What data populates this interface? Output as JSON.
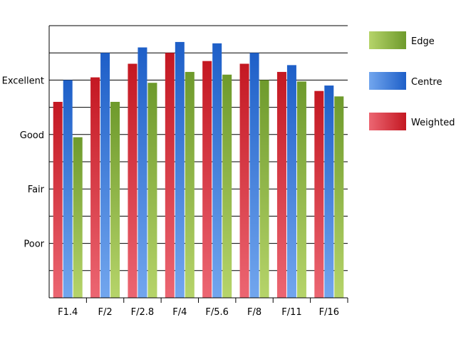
{
  "chart_data": {
    "type": "bar",
    "categories": [
      "F1.4",
      "F/2",
      "F/2.8",
      "F/4",
      "F/5.6",
      "F/8",
      "F/11",
      "F/16"
    ],
    "series": [
      {
        "name": "Weighted",
        "color": "#c41822",
        "color_light": "#ec6672",
        "values": [
          7.2,
          8.1,
          8.6,
          9.0,
          8.7,
          8.6,
          8.3,
          7.6
        ]
      },
      {
        "name": "Centre",
        "color": "#1e5fc8",
        "color_light": "#72a6ee",
        "values": [
          8.0,
          9.0,
          9.2,
          9.4,
          9.35,
          9.0,
          8.55,
          7.8
        ]
      },
      {
        "name": "Edge",
        "color": "#6e9a2c",
        "color_light": "#b6d46a",
        "values": [
          5.9,
          7.2,
          7.9,
          8.3,
          8.2,
          8.0,
          7.95,
          7.4
        ]
      }
    ],
    "y_ticks": [
      {
        "value": 2,
        "label": "Poor"
      },
      {
        "value": 4,
        "label": "Fair"
      },
      {
        "value": 6,
        "label": "Good"
      },
      {
        "value": 8,
        "label": "Excellent"
      }
    ],
    "legend_order": [
      "Edge",
      "Centre",
      "Weighted"
    ],
    "ylim": [
      0,
      10
    ],
    "grid": true,
    "legend_position": "top-right",
    "title": "",
    "xlabel": "",
    "ylabel": ""
  }
}
